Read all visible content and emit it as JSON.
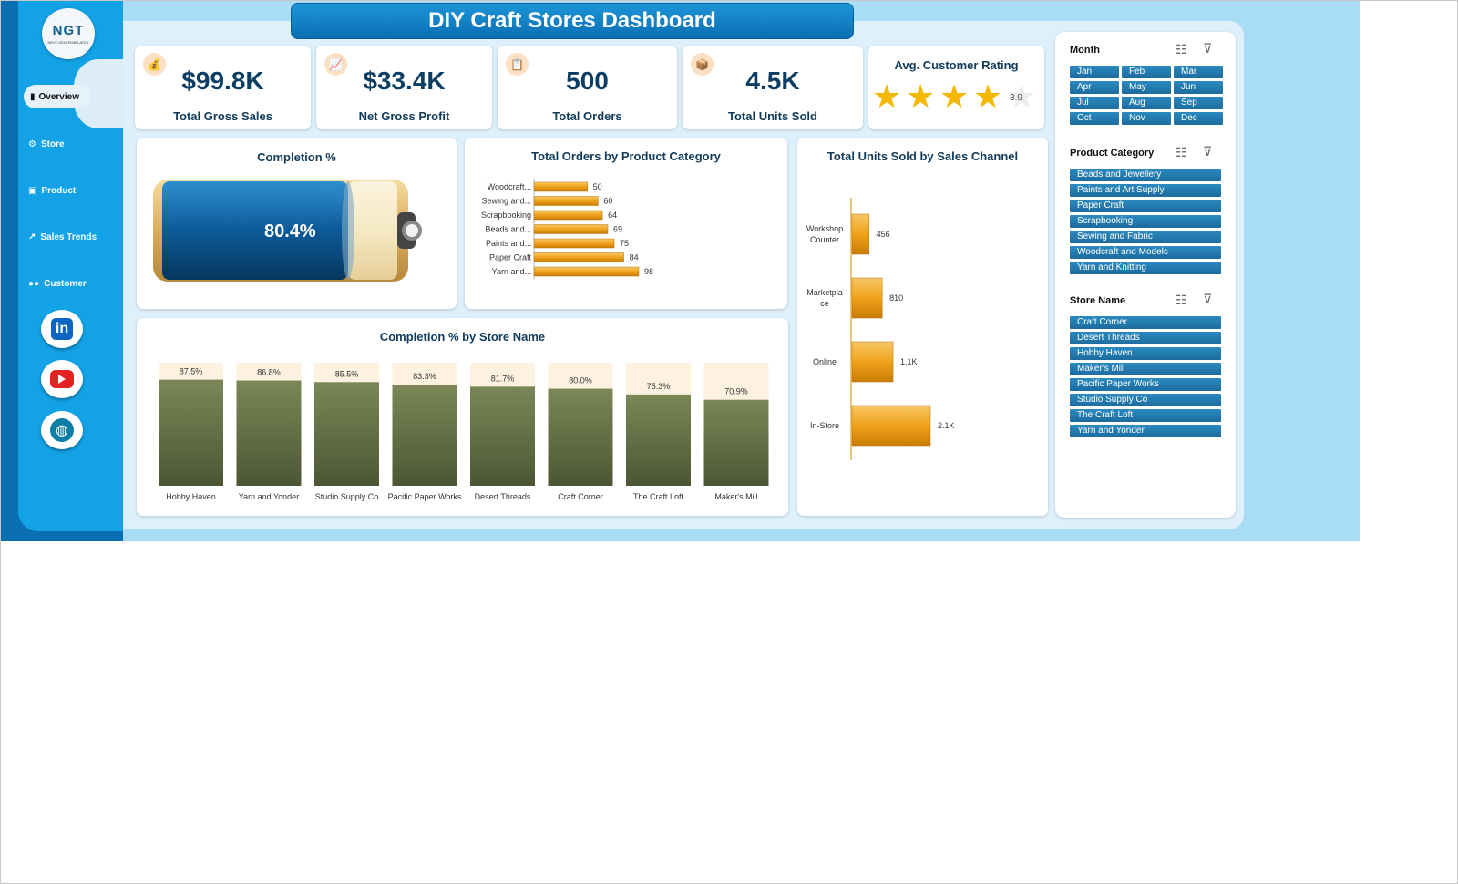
{
  "title": "DIY Craft Stores Dashboard",
  "logo": {
    "text": "NGT",
    "subtext": "NEXT GEN TEMPLATES"
  },
  "nav": [
    {
      "label": "Overview",
      "icon": "bar-chart-icon",
      "active": true
    },
    {
      "label": "Store",
      "icon": "gear-icon"
    },
    {
      "label": "Product",
      "icon": "box-icon"
    },
    {
      "label": "Sales Trends",
      "icon": "line-chart-icon"
    },
    {
      "label": "Customer",
      "icon": "people-icon"
    }
  ],
  "social": [
    "linkedin-icon",
    "youtube-icon",
    "globe-icon"
  ],
  "kpis": [
    {
      "value": "$99.8K",
      "label": "Total Gross Sales",
      "icon": "money-bag-icon"
    },
    {
      "value": "$33.4K",
      "label": "Net Gross Profit",
      "icon": "trend-icon"
    },
    {
      "value": "500",
      "label": "Total Orders",
      "icon": "clipboard-icon"
    },
    {
      "value": "4.5K",
      "label": "Total Units Sold",
      "icon": "box-icon"
    }
  ],
  "rating": {
    "title": "Avg. Customer Rating",
    "value": "3.9",
    "stars_max": 5,
    "stars_filled": 4
  },
  "completion": {
    "title": "Completion %",
    "value": "80.4%",
    "fraction": 0.804
  },
  "orders_chart_title": "Total Orders by Product Category",
  "units_chart_title": "Total Units Sold by Sales Channel",
  "store_chart_title": "Completion % by Store Name",
  "chart_data": [
    {
      "type": "bar",
      "orientation": "horizontal",
      "title": "Total Orders by Product Category",
      "categories": [
        "Woodcraft...",
        "Sewing and...",
        "Scrapbooking",
        "Beads and...",
        "Paints and...",
        "Paper Craft",
        "Yarn and..."
      ],
      "values": [
        50,
        60,
        64,
        69,
        75,
        84,
        98
      ],
      "data_labels": [
        "50",
        "60",
        "64",
        "69",
        "75",
        "84",
        "98"
      ],
      "xlim": [
        0,
        100
      ]
    },
    {
      "type": "bar",
      "orientation": "horizontal",
      "title": "Total Units Sold by Sales Channel",
      "categories": [
        "Workshop Counter",
        "Marketplace",
        "Online",
        "In-Store"
      ],
      "values": [
        456,
        810,
        1100,
        2100
      ],
      "data_labels": [
        "456",
        "810",
        "1.1K",
        "2.1K"
      ],
      "xlim": [
        0,
        2600
      ]
    },
    {
      "type": "bar",
      "orientation": "vertical",
      "title": "Completion % by Store Name",
      "categories": [
        "Hobby Haven",
        "Yarn and Yonder",
        "Studio Supply Co",
        "Pacific Paper Works",
        "Desert Threads",
        "Craft Corner",
        "The Craft Loft",
        "Maker's Mill"
      ],
      "values": [
        87.5,
        86.8,
        85.5,
        83.3,
        81.7,
        80.0,
        75.3,
        70.9
      ],
      "data_labels": [
        "87.5%",
        "86.8%",
        "85.5%",
        "83.3%",
        "81.7%",
        "80.0%",
        "75.3%",
        "70.9%"
      ],
      "ylim": [
        0,
        100
      ]
    }
  ],
  "slicers": {
    "month": {
      "title": "Month",
      "items": [
        "Jan",
        "Feb",
        "Mar",
        "Apr",
        "May",
        "Jun",
        "Jul",
        "Aug",
        "Sep",
        "Oct",
        "Nov",
        "Dec"
      ]
    },
    "category": {
      "title": "Product Category",
      "items": [
        "Beads and Jewellery",
        "Paints and Art Supply",
        "Paper Craft",
        "Scrapbooking",
        "Sewing and Fabric",
        "Woodcraft and Models",
        "Yarn and Knitting"
      ]
    },
    "store": {
      "title": "Store Name",
      "items": [
        "Craft Corner",
        "Desert Threads",
        "Hobby Haven",
        "Maker's Mill",
        "Pacific Paper Works",
        "Studio Supply Co",
        "The Craft Loft",
        "Yarn and Yonder"
      ]
    }
  },
  "colors": {
    "accent": "#0b6eb4",
    "bar_orange": "#f0a21a",
    "bar_olive": "#6b7547",
    "chip_blue": "#2b8ac0"
  }
}
